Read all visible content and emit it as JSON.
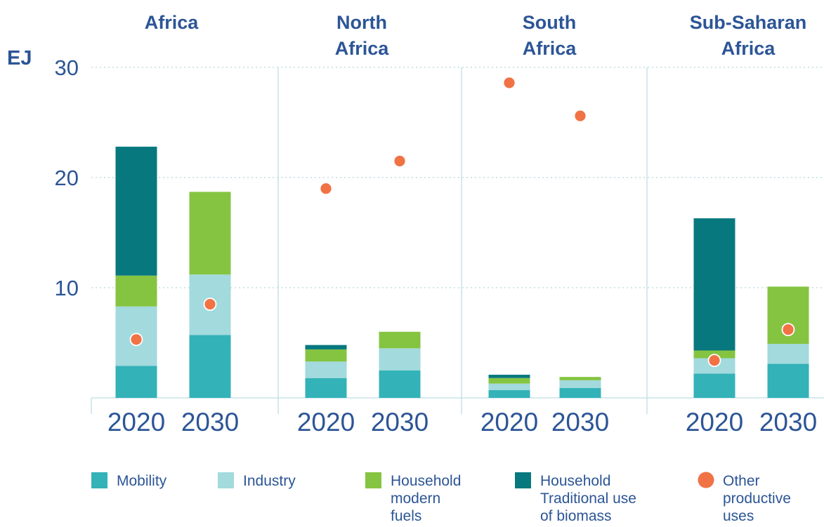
{
  "chart_data": {
    "type": "bar",
    "stacked": true,
    "unit": "EJ",
    "ylim": [
      0,
      30
    ],
    "yticks": [
      10,
      20,
      30
    ],
    "grid": "horizontal-dotted",
    "legend_position": "bottom",
    "colors": {
      "mobility": "#33b2b8",
      "industry": "#a2dadd",
      "household_modern": "#85c441",
      "household_traditional": "#08787f",
      "other_productive": "#f07245"
    },
    "legend": [
      {
        "key": "mobility",
        "lines": [
          "Mobility"
        ],
        "marker": "square"
      },
      {
        "key": "industry",
        "lines": [
          "Industry"
        ],
        "marker": "square"
      },
      {
        "key": "household_modern",
        "lines": [
          "Household",
          "modern",
          "fuels"
        ],
        "marker": "square"
      },
      {
        "key": "household_traditional",
        "lines": [
          "Household",
          "Traditional use",
          "of biomass"
        ],
        "marker": "square"
      },
      {
        "key": "other_productive",
        "lines": [
          "Other",
          "productive",
          "uses"
        ],
        "marker": "circle"
      }
    ],
    "panels": [
      {
        "title": [
          "Africa"
        ],
        "categories": [
          "2020",
          "2030"
        ],
        "series": {
          "mobility": [
            2.9,
            5.7
          ],
          "industry": [
            5.4,
            5.5
          ],
          "household_modern": [
            2.8,
            7.5
          ],
          "household_traditional": [
            11.7,
            0
          ]
        },
        "other_productive": [
          5.3,
          8.5
        ]
      },
      {
        "title": [
          "North",
          "Africa"
        ],
        "categories": [
          "2020",
          "2030"
        ],
        "series": {
          "mobility": [
            1.8,
            2.5
          ],
          "industry": [
            1.5,
            2.0
          ],
          "household_modern": [
            1.1,
            1.5
          ],
          "household_traditional": [
            0.4,
            0
          ]
        },
        "other_productive": [
          19.0,
          21.5
        ]
      },
      {
        "title": [
          "South",
          "Africa"
        ],
        "categories": [
          "2020",
          "2030"
        ],
        "series": {
          "mobility": [
            0.7,
            0.9
          ],
          "industry": [
            0.6,
            0.7
          ],
          "household_modern": [
            0.5,
            0.3
          ],
          "household_traditional": [
            0.3,
            0
          ]
        },
        "other_productive": [
          28.6,
          25.6
        ]
      },
      {
        "title": [
          "Sub-Saharan",
          "Africa"
        ],
        "categories": [
          "2020",
          "2030"
        ],
        "series": {
          "mobility": [
            2.2,
            3.1
          ],
          "industry": [
            1.4,
            1.8
          ],
          "household_modern": [
            0.7,
            5.2
          ],
          "household_traditional": [
            12.0,
            0
          ]
        },
        "other_productive": [
          3.4,
          6.2
        ]
      }
    ]
  }
}
